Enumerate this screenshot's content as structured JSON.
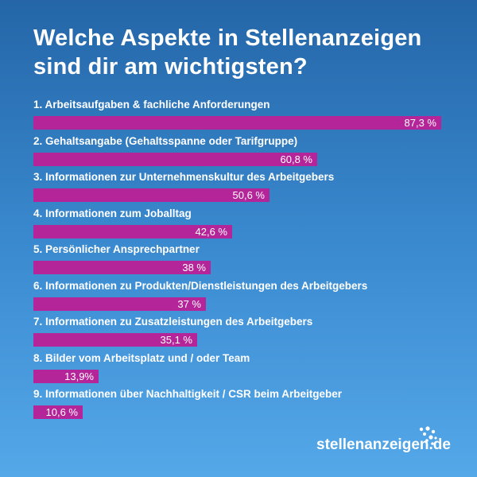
{
  "title_line1": "Welche Aspekte in Stellenanzeigen",
  "title_line2": "sind dir am wichtigsten?",
  "brand": "stellenanzeigen.de",
  "colors": {
    "bar": "#b5259a",
    "text": "#ffffff",
    "background_top": "#2466a8",
    "background_bottom": "#54a8e8"
  },
  "chart_data": {
    "type": "bar",
    "orientation": "horizontal",
    "title": "Welche Aspekte in Stellenanzeigen sind dir am wichtigsten?",
    "unit": "%",
    "xlim": [
      0,
      100
    ],
    "categories": [
      "1. Arbeitsaufgaben & fachliche Anforderungen",
      "2. Gehaltsangabe (Gehaltsspanne oder Tarifgruppe)",
      "3. Informationen zur Unternehmenskultur des Arbeitgebers",
      "4. Informationen zum Joballtag",
      "5. Persönlicher Ansprechpartner",
      "6. Informationen zu Produkten/Dienstleistungen des Arbeitgebers",
      "7. Informationen zu Zusatzleistungen des Arbeitgebers",
      "8. Bilder vom Arbeitsplatz und / oder Team",
      "9. Informationen über Nachhaltigkeit / CSR beim Arbeitgeber"
    ],
    "values": [
      87.3,
      60.8,
      50.6,
      42.6,
      38,
      37,
      35.1,
      13.9,
      10.6
    ],
    "value_labels": [
      "87,3 %",
      "60,8 %",
      "50,6 %",
      "42,6 %",
      "38 %",
      "37 %",
      "35,1 %",
      "13,9%",
      "10,6 %"
    ]
  }
}
